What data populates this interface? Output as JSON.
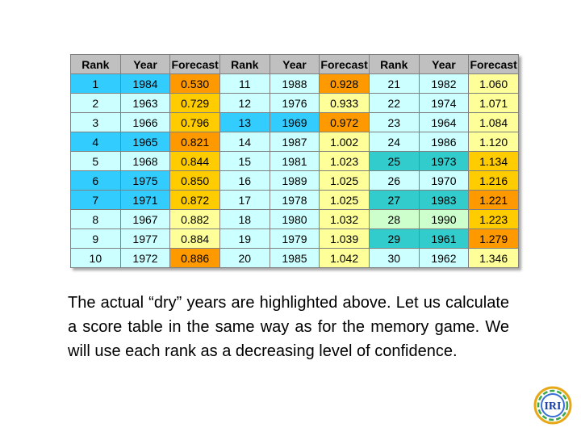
{
  "table": {
    "headers": [
      "Rank",
      "Year",
      "Forecast",
      "Rank",
      "Year",
      "Forecast",
      "Rank",
      "Year",
      "Forecast"
    ],
    "rows": [
      [
        {
          "v": "1",
          "c": "c-cy"
        },
        {
          "v": "1984",
          "c": "c-cy"
        },
        {
          "v": "0.530",
          "c": "c-or"
        },
        {
          "v": "11",
          "c": "c-ltc"
        },
        {
          "v": "1988",
          "c": "c-ltc"
        },
        {
          "v": "0.928",
          "c": "c-or"
        },
        {
          "v": "21",
          "c": "c-ltc"
        },
        {
          "v": "1982",
          "c": "c-ltc"
        },
        {
          "v": "1.060",
          "c": "c-lyl"
        }
      ],
      [
        {
          "v": "2",
          "c": "c-ltc"
        },
        {
          "v": "1963",
          "c": "c-ltc"
        },
        {
          "v": "0.729",
          "c": "c-yl"
        },
        {
          "v": "12",
          "c": "c-ltc"
        },
        {
          "v": "1976",
          "c": "c-ltc"
        },
        {
          "v": "0.933",
          "c": "c-lyl"
        },
        {
          "v": "22",
          "c": "c-ltc"
        },
        {
          "v": "1974",
          "c": "c-ltc"
        },
        {
          "v": "1.071",
          "c": "c-lyl"
        }
      ],
      [
        {
          "v": "3",
          "c": "c-ltc"
        },
        {
          "v": "1966",
          "c": "c-ltc"
        },
        {
          "v": "0.796",
          "c": "c-yl"
        },
        {
          "v": "13",
          "c": "c-cy"
        },
        {
          "v": "1969",
          "c": "c-cy"
        },
        {
          "v": "0.972",
          "c": "c-or"
        },
        {
          "v": "23",
          "c": "c-ltc"
        },
        {
          "v": "1964",
          "c": "c-ltc"
        },
        {
          "v": "1.084",
          "c": "c-lyl"
        }
      ],
      [
        {
          "v": "4",
          "c": "c-cy"
        },
        {
          "v": "1965",
          "c": "c-cy"
        },
        {
          "v": "0.821",
          "c": "c-or"
        },
        {
          "v": "14",
          "c": "c-ltc"
        },
        {
          "v": "1987",
          "c": "c-ltc"
        },
        {
          "v": "1.002",
          "c": "c-lyl"
        },
        {
          "v": "24",
          "c": "c-ltc"
        },
        {
          "v": "1986",
          "c": "c-ltc"
        },
        {
          "v": "1.120",
          "c": "c-lyl"
        }
      ],
      [
        {
          "v": "5",
          "c": "c-ltc"
        },
        {
          "v": "1968",
          "c": "c-ltc"
        },
        {
          "v": "0.844",
          "c": "c-yl"
        },
        {
          "v": "15",
          "c": "c-ltc"
        },
        {
          "v": "1981",
          "c": "c-ltc"
        },
        {
          "v": "1.023",
          "c": "c-lyl"
        },
        {
          "v": "25",
          "c": "c-tl"
        },
        {
          "v": "1973",
          "c": "c-tl"
        },
        {
          "v": "1.134",
          "c": "c-yl"
        }
      ],
      [
        {
          "v": "6",
          "c": "c-cy"
        },
        {
          "v": "1975",
          "c": "c-cy"
        },
        {
          "v": "0.850",
          "c": "c-yl"
        },
        {
          "v": "16",
          "c": "c-ltc"
        },
        {
          "v": "1989",
          "c": "c-ltc"
        },
        {
          "v": "1.025",
          "c": "c-lyl"
        },
        {
          "v": "26",
          "c": "c-ltc"
        },
        {
          "v": "1970",
          "c": "c-ltc"
        },
        {
          "v": "1.216",
          "c": "c-yl"
        }
      ],
      [
        {
          "v": "7",
          "c": "c-cy"
        },
        {
          "v": "1971",
          "c": "c-cy"
        },
        {
          "v": "0.872",
          "c": "c-yl"
        },
        {
          "v": "17",
          "c": "c-ltc"
        },
        {
          "v": "1978",
          "c": "c-ltc"
        },
        {
          "v": "1.025",
          "c": "c-lyl"
        },
        {
          "v": "27",
          "c": "c-tl"
        },
        {
          "v": "1983",
          "c": "c-tl"
        },
        {
          "v": "1.221",
          "c": "c-or"
        }
      ],
      [
        {
          "v": "8",
          "c": "c-ltc"
        },
        {
          "v": "1967",
          "c": "c-ltc"
        },
        {
          "v": "0.882",
          "c": "c-lyl"
        },
        {
          "v": "18",
          "c": "c-ltc"
        },
        {
          "v": "1980",
          "c": "c-ltc"
        },
        {
          "v": "1.032",
          "c": "c-lyl"
        },
        {
          "v": "28",
          "c": "c-ltl"
        },
        {
          "v": "1990",
          "c": "c-ltl"
        },
        {
          "v": "1.223",
          "c": "c-yl"
        }
      ],
      [
        {
          "v": "9",
          "c": "c-ltc"
        },
        {
          "v": "1977",
          "c": "c-ltc"
        },
        {
          "v": "0.884",
          "c": "c-lyl"
        },
        {
          "v": "19",
          "c": "c-ltc"
        },
        {
          "v": "1979",
          "c": "c-ltc"
        },
        {
          "v": "1.039",
          "c": "c-lyl"
        },
        {
          "v": "29",
          "c": "c-tl"
        },
        {
          "v": "1961",
          "c": "c-tl"
        },
        {
          "v": "1.279",
          "c": "c-or"
        }
      ],
      [
        {
          "v": "10",
          "c": "c-ltc"
        },
        {
          "v": "1972",
          "c": "c-ltc"
        },
        {
          "v": "0.886",
          "c": "c-or"
        },
        {
          "v": "20",
          "c": "c-ltc"
        },
        {
          "v": "1985",
          "c": "c-ltc"
        },
        {
          "v": "1.042",
          "c": "c-lyl"
        },
        {
          "v": "30",
          "c": "c-ltc"
        },
        {
          "v": "1962",
          "c": "c-ltc"
        },
        {
          "v": "1.346",
          "c": "c-lyl"
        }
      ]
    ]
  },
  "caption": "The actual “dry” years are highlighted above. Let us calculate a score table in the same way as for the memory game. We will use each rank as a decreasing level of confidence.",
  "logo": {
    "text": "IRI"
  },
  "colors": {
    "header": "#c0c0c0",
    "cyan": "#33ccff",
    "light_cyan": "#ccffff",
    "orange": "#ff9900",
    "yellow": "#ffcc00",
    "light_yellow": "#ffff99",
    "teal": "#33cccc",
    "light_green": "#ccffcc"
  }
}
